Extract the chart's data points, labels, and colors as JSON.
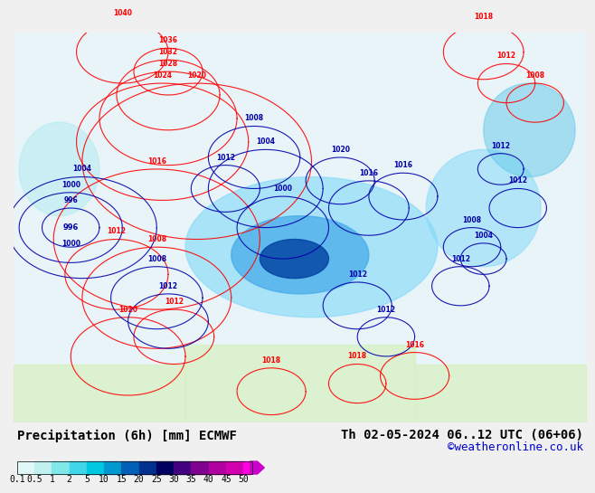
{
  "title_left": "Precipitation (6h) [mm] ECMWF",
  "title_right": "Th 02-05-2024 06..12 UTC (06+06)",
  "watermark": "©weatheronline.co.uk",
  "colorbar_values": [
    0.1,
    0.5,
    1,
    2,
    5,
    10,
    15,
    20,
    25,
    30,
    35,
    40,
    45,
    50
  ],
  "colorbar_colors": [
    "#e0f8f8",
    "#c0f0f0",
    "#80e8e8",
    "#40d8e8",
    "#00c8e0",
    "#0098d0",
    "#0060b8",
    "#003090",
    "#000060",
    "#400080",
    "#800090",
    "#b000a0",
    "#d000b0",
    "#f000c8",
    "#ff00e0"
  ],
  "bg_color": "#f0f0f0",
  "map_bg": "#f8f8ff",
  "title_fontsize": 10,
  "watermark_color": "#0000cc",
  "arrow_color": "#cc00cc"
}
